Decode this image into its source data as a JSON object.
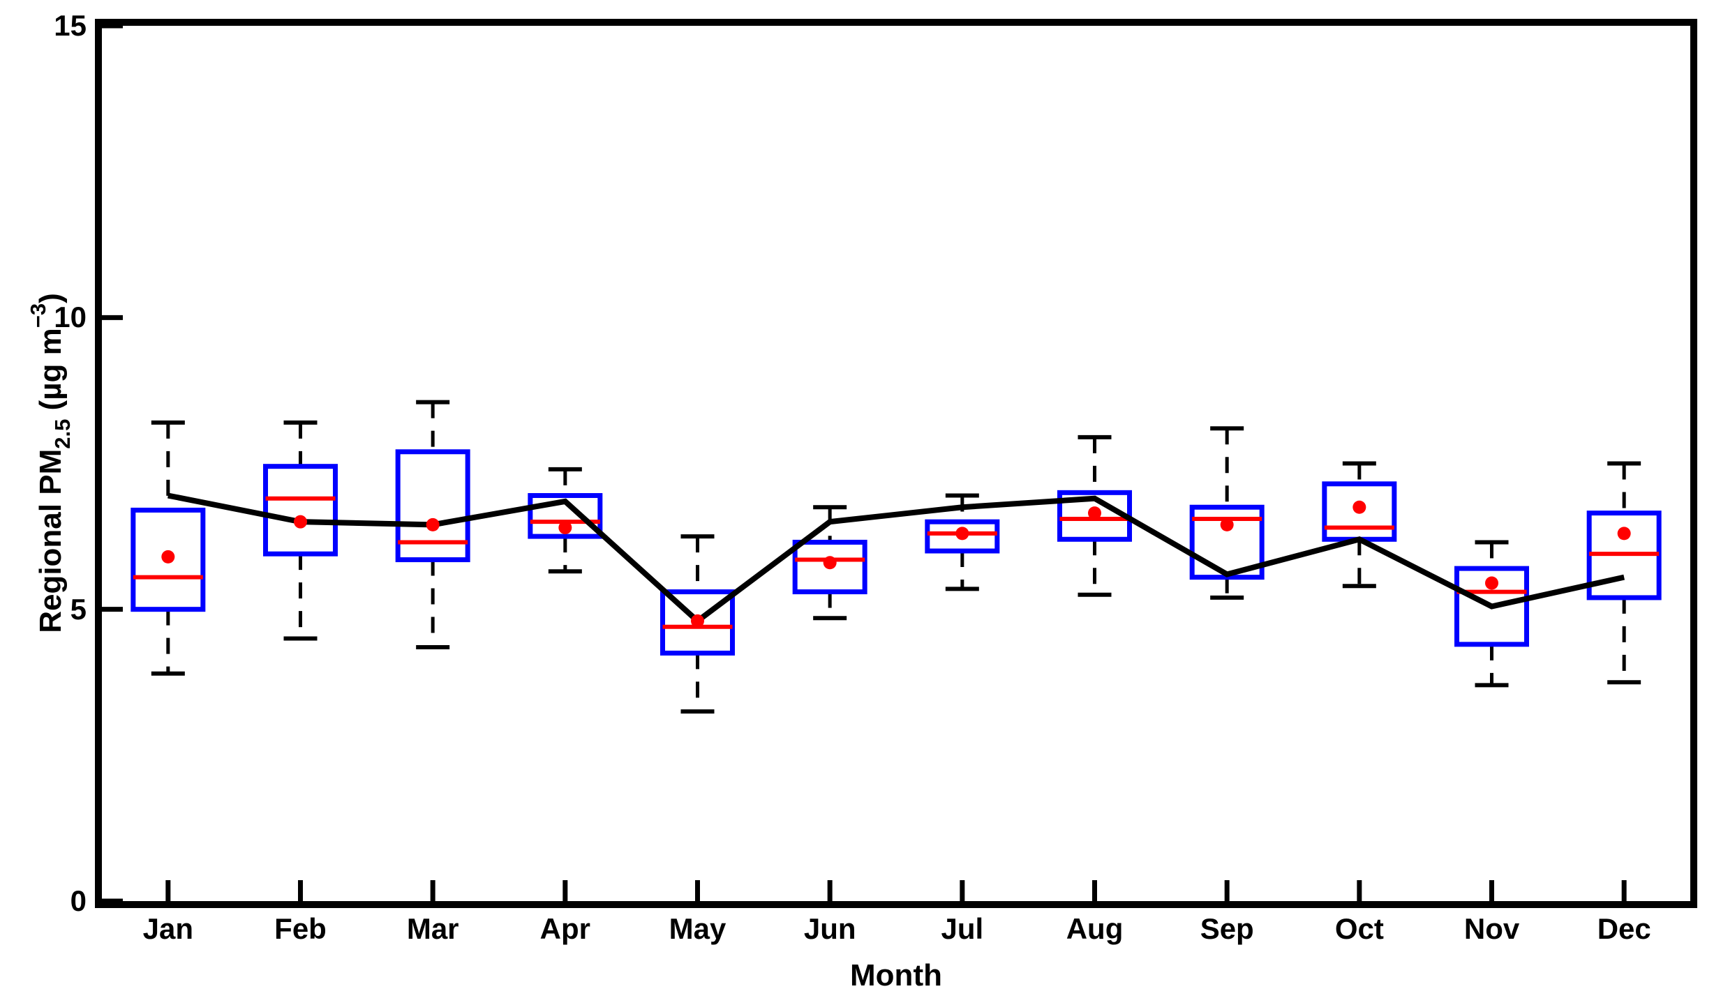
{
  "chart_data": {
    "type": "box",
    "title": "",
    "xlabel": "Month",
    "ylabel": "Regional PM2.5 (µg m−3)",
    "ylabel_parts": {
      "prefix": "Regional PM",
      "subscript": "2.5",
      "mid": " (µg m",
      "superscript": "−3",
      "suffix": ")"
    },
    "ylim": [
      0,
      15
    ],
    "yticks": [
      0,
      5,
      10,
      15
    ],
    "ytick_labels_top_to_bottom": [
      "15",
      "10",
      "5",
      "0"
    ],
    "categories": [
      "Jan",
      "Feb",
      "Mar",
      "Apr",
      "May",
      "Jun",
      "Jul",
      "Aug",
      "Sep",
      "Oct",
      "Nov",
      "Dec"
    ],
    "grid": false,
    "legend": "none",
    "colors": {
      "box_edge": "#0000ff",
      "median": "#ff0000",
      "mean_marker": "#ff0000",
      "whisker": "#000000",
      "trend_line": "#000000",
      "axis": "#000000",
      "background": "#ffffff"
    },
    "boxes": [
      {
        "month": "Jan",
        "whisker_low": 3.9,
        "q1": 5.0,
        "median": 5.55,
        "q3": 6.7,
        "whisker_high": 8.2,
        "mean": 5.9
      },
      {
        "month": "Feb",
        "whisker_low": 4.5,
        "q1": 5.95,
        "median": 6.9,
        "q3": 7.45,
        "whisker_high": 8.2,
        "mean": 6.5
      },
      {
        "month": "Mar",
        "whisker_low": 4.35,
        "q1": 5.85,
        "median": 6.15,
        "q3": 7.7,
        "whisker_high": 8.55,
        "mean": 6.45
      },
      {
        "month": "Apr",
        "whisker_low": 5.65,
        "q1": 6.25,
        "median": 6.5,
        "q3": 6.95,
        "whisker_high": 7.4,
        "mean": 6.4
      },
      {
        "month": "May",
        "whisker_low": 3.25,
        "q1": 4.25,
        "median": 4.7,
        "q3": 5.3,
        "whisker_high": 6.25,
        "mean": 4.8
      },
      {
        "month": "Jun",
        "whisker_low": 4.85,
        "q1": 5.3,
        "median": 5.85,
        "q3": 6.15,
        "whisker_high": 6.75,
        "mean": 5.8
      },
      {
        "month": "Jul",
        "whisker_low": 5.35,
        "q1": 6.0,
        "median": 6.3,
        "q3": 6.5,
        "whisker_high": 6.95,
        "mean": 6.3
      },
      {
        "month": "Aug",
        "whisker_low": 5.25,
        "q1": 6.2,
        "median": 6.55,
        "q3": 7.0,
        "whisker_high": 7.95,
        "mean": 6.65
      },
      {
        "month": "Sep",
        "whisker_low": 5.2,
        "q1": 5.55,
        "median": 6.55,
        "q3": 6.75,
        "whisker_high": 8.1,
        "mean": 6.45
      },
      {
        "month": "Oct",
        "whisker_low": 5.4,
        "q1": 6.2,
        "median": 6.4,
        "q3": 7.15,
        "whisker_high": 7.5,
        "mean": 6.75
      },
      {
        "month": "Nov",
        "whisker_low": 3.7,
        "q1": 4.4,
        "median": 5.3,
        "q3": 5.7,
        "whisker_high": 6.15,
        "mean": 5.45
      },
      {
        "month": "Dec",
        "whisker_low": 3.75,
        "q1": 5.2,
        "median": 5.95,
        "q3": 6.65,
        "whisker_high": 7.5,
        "mean": 6.3
      }
    ],
    "series": [
      {
        "name": "monthly-trend-line",
        "type": "line",
        "values": [
          6.95,
          6.5,
          6.45,
          6.85,
          4.8,
          6.5,
          6.75,
          6.9,
          5.6,
          6.2,
          5.05,
          5.55
        ]
      }
    ]
  }
}
